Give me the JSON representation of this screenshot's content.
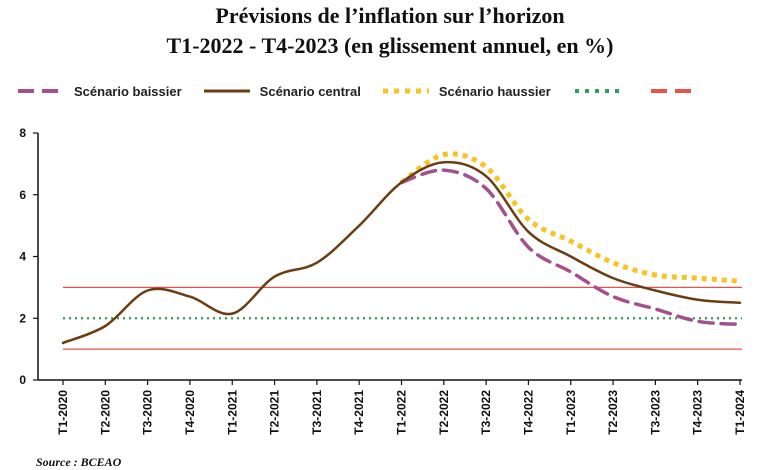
{
  "title_line1": "Prévisions de l’inflation sur l’horizon",
  "title_line2": "T1-2022 - T4-2023 (en glissement annuel, en  %)",
  "source": "Source : BCEAO",
  "legend": [
    {
      "label": "Scénario baissier",
      "color": "#a4508a",
      "style": "dashed"
    },
    {
      "label": "Scénario central",
      "color": "#6b3d12",
      "style": "solid"
    },
    {
      "label": "Scénario haussier",
      "color": "#f7c325",
      "style": "dotted"
    },
    {
      "label": "",
      "color": "#2e9e5e",
      "style": "dotted"
    },
    {
      "label": "",
      "color": "#e8534a",
      "style": "dashed"
    }
  ],
  "chart_data": {
    "type": "line",
    "title": "Prévisions de l’inflation sur l’horizon T1-2022 - T4-2023 (en glissement annuel, en  %)",
    "categories": [
      "T1-2020",
      "T2-2020",
      "T3-2020",
      "T4-2020",
      "T1-2021",
      "T2-2021",
      "T3-2021",
      "T4-2021",
      "T1-2022",
      "T2-2022",
      "T3-2022",
      "T4-2022",
      "T1-2023",
      "T2-2023",
      "T3-2023",
      "T4-2023",
      "T1-2024"
    ],
    "ylim": [
      0,
      8
    ],
    "yticks": [
      0,
      2,
      4,
      6,
      8
    ],
    "grid": false,
    "legend_position": "top-left",
    "series": [
      {
        "name": "Scénario central",
        "color": "#6b3d12",
        "style": "solid",
        "values": [
          1.2,
          1.75,
          2.9,
          2.7,
          2.15,
          3.35,
          3.8,
          5.0,
          6.4,
          7.05,
          6.6,
          4.8,
          4.0,
          3.3,
          2.9,
          2.6,
          2.5
        ]
      },
      {
        "name": "Scénario baissier",
        "color": "#a4508a",
        "style": "dashed",
        "values": [
          null,
          null,
          null,
          null,
          null,
          null,
          null,
          null,
          6.4,
          6.8,
          6.2,
          4.3,
          3.5,
          2.7,
          2.3,
          1.9,
          1.8
        ]
      },
      {
        "name": "Scénario haussier",
        "color": "#f7c325",
        "style": "dotted",
        "values": [
          null,
          null,
          null,
          null,
          null,
          null,
          null,
          null,
          6.4,
          7.3,
          6.9,
          5.2,
          4.5,
          3.8,
          3.4,
          3.3,
          3.2
        ]
      }
    ],
    "reference_lines": [
      {
        "value": 2,
        "color": "#2e9e5e",
        "style": "dotted"
      },
      {
        "value": 3,
        "color": "#e8534a",
        "style": "solid"
      },
      {
        "value": 1,
        "color": "#e8534a",
        "style": "solid"
      }
    ]
  }
}
